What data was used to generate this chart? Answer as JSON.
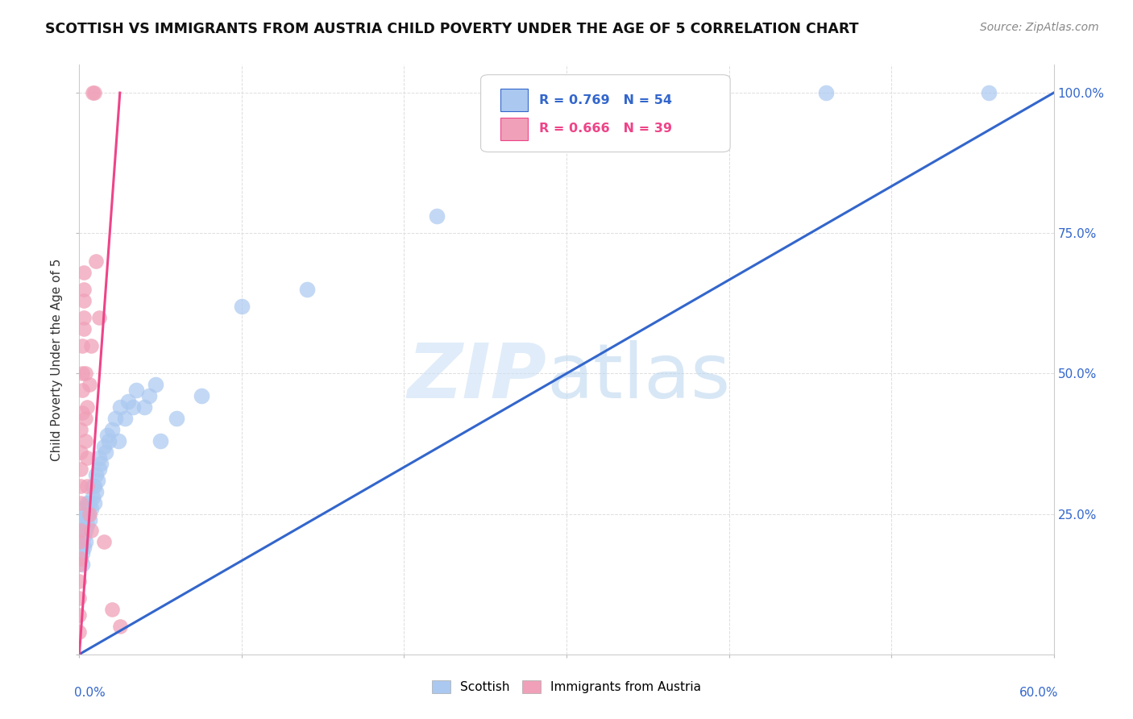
{
  "title": "SCOTTISH VS IMMIGRANTS FROM AUSTRIA CHILD POVERTY UNDER THE AGE OF 5 CORRELATION CHART",
  "source": "Source: ZipAtlas.com",
  "ylabel": "Child Poverty Under the Age of 5",
  "blue_scatter_color": "#aac8f0",
  "pink_scatter_color": "#f0a0b8",
  "blue_line_color": "#3366cc",
  "pink_line_color": "#ee4488",
  "blue_R": 0.769,
  "blue_N": 54,
  "pink_R": 0.666,
  "pink_N": 39,
  "scottish_x": [
    0.001,
    0.001,
    0.001,
    0.002,
    0.002,
    0.002,
    0.002,
    0.003,
    0.003,
    0.003,
    0.003,
    0.004,
    0.004,
    0.004,
    0.005,
    0.005,
    0.005,
    0.006,
    0.006,
    0.007,
    0.008,
    0.008,
    0.009,
    0.009,
    0.01,
    0.01,
    0.011,
    0.012,
    0.012,
    0.013,
    0.015,
    0.016,
    0.017,
    0.018,
    0.02,
    0.022,
    0.024,
    0.025,
    0.028,
    0.03,
    0.033,
    0.035,
    0.04,
    0.043,
    0.047,
    0.05,
    0.06,
    0.075,
    0.1,
    0.14,
    0.22,
    0.33,
    0.46,
    0.56
  ],
  "scottish_y": [
    0.17,
    0.19,
    0.21,
    0.16,
    0.18,
    0.2,
    0.23,
    0.19,
    0.21,
    0.24,
    0.26,
    0.2,
    0.22,
    0.25,
    0.23,
    0.25,
    0.27,
    0.24,
    0.27,
    0.26,
    0.28,
    0.3,
    0.27,
    0.3,
    0.29,
    0.32,
    0.31,
    0.33,
    0.35,
    0.34,
    0.37,
    0.36,
    0.39,
    0.38,
    0.4,
    0.42,
    0.38,
    0.44,
    0.42,
    0.45,
    0.44,
    0.47,
    0.44,
    0.46,
    0.48,
    0.38,
    0.42,
    0.46,
    0.62,
    0.65,
    0.78,
    1.0,
    1.0,
    1.0
  ],
  "austria_x": [
    0.0,
    0.0,
    0.0,
    0.0,
    0.0,
    0.0,
    0.001,
    0.001,
    0.001,
    0.001,
    0.001,
    0.001,
    0.001,
    0.002,
    0.002,
    0.002,
    0.002,
    0.003,
    0.003,
    0.003,
    0.003,
    0.003,
    0.004,
    0.004,
    0.004,
    0.005,
    0.005,
    0.005,
    0.006,
    0.006,
    0.007,
    0.007,
    0.008,
    0.009,
    0.01,
    0.012,
    0.015,
    0.02,
    0.025
  ],
  "austria_y": [
    0.04,
    0.07,
    0.1,
    0.13,
    0.16,
    0.2,
    0.17,
    0.22,
    0.27,
    0.3,
    0.33,
    0.36,
    0.4,
    0.43,
    0.47,
    0.5,
    0.55,
    0.58,
    0.6,
    0.63,
    0.65,
    0.68,
    0.5,
    0.42,
    0.38,
    0.44,
    0.35,
    0.3,
    0.48,
    0.25,
    0.22,
    0.55,
    1.0,
    1.0,
    0.7,
    0.6,
    0.2,
    0.08,
    0.05
  ],
  "blue_line_x": [
    0.0,
    0.6
  ],
  "blue_line_y": [
    0.0,
    1.0
  ],
  "pink_line_x": [
    0.0,
    0.025
  ],
  "pink_line_y": [
    0.0,
    1.0
  ],
  "xlim": [
    0,
    0.6
  ],
  "ylim": [
    0,
    1.05
  ],
  "grid_color": "#dddddd",
  "right_ytick_labels": [
    "25.0%",
    "50.0%",
    "75.0%",
    "100.0%"
  ],
  "right_ytick_values": [
    0.25,
    0.5,
    0.75,
    1.0
  ],
  "watermark_zip": "ZIP",
  "watermark_atlas": "atlas",
  "legend_blue_text": "R = 0.769   N = 54",
  "legend_pink_text": "R = 0.666   N = 39"
}
